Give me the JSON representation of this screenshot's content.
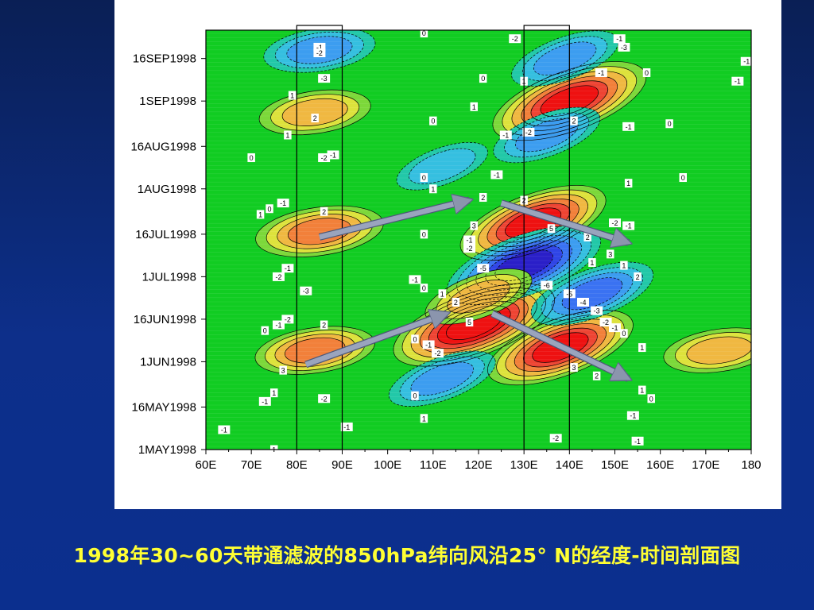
{
  "caption": "1998年30~60天带通滤波的850hPa纬向风沿25° N的经度-时间剖面图",
  "chart_data": {
    "type": "heatmap",
    "title": "",
    "xlabel": "",
    "ylabel": "",
    "x_tick_labels": [
      "60E",
      "70E",
      "80E",
      "90E",
      "100E",
      "110E",
      "120E",
      "130E",
      "140E",
      "150E",
      "160E",
      "170E",
      "180"
    ],
    "x_ticks": [
      60,
      70,
      80,
      90,
      100,
      110,
      120,
      130,
      140,
      150,
      160,
      170,
      180
    ],
    "xlim": [
      60,
      180
    ],
    "y_tick_labels": [
      "1MAY1998",
      "16MAY1998",
      "1JUN1998",
      "16JUN1998",
      "1JUL1998",
      "16JUL1998",
      "1AUG1998",
      "16AUG1998",
      "1SEP1998",
      "16SEP1998"
    ],
    "y_ticks": [
      "1998-05-01",
      "1998-05-16",
      "1998-06-01",
      "1998-06-16",
      "1998-07-01",
      "1998-07-16",
      "1998-08-01",
      "1998-08-16",
      "1998-09-01",
      "1998-09-16"
    ],
    "ylim": [
      "1998-05-01",
      "1998-09-26"
    ],
    "contour_levels": [
      -6,
      -5,
      -4,
      -3,
      -2,
      -1,
      0,
      1,
      2,
      3,
      4,
      5,
      6
    ],
    "color_scale": {
      "-6": "#2a1fc8",
      "-5": "#2f45e6",
      "-4": "#3a72f2",
      "-3": "#3c9df0",
      "-2": "#35bfe0",
      "-1": "#22c8a8",
      "0": "#11cc22",
      "1": "#7cd83a",
      "2": "#dde23c",
      "3": "#f0b841",
      "4": "#f2803a",
      "5": "#ee4433",
      "6": "#ee1111"
    },
    "anomalies": [
      {
        "lon": 119,
        "date": "1998-06-14",
        "value": 6.5,
        "sign": "positive"
      },
      {
        "lon": 138,
        "date": "1998-06-06",
        "value": 5.5,
        "sign": "positive"
      },
      {
        "lon": 132,
        "date": "1998-07-20",
        "value": 5.5,
        "sign": "positive"
      },
      {
        "lon": 140,
        "date": "1998-09-01",
        "value": 6,
        "sign": "positive"
      },
      {
        "lon": 130,
        "date": "1998-07-05",
        "value": -6,
        "sign": "negative"
      },
      {
        "lon": 85,
        "date": "1998-07-17",
        "value": 4,
        "sign": "positive"
      },
      {
        "lon": 84,
        "date": "1998-06-05",
        "value": 3.5,
        "sign": "positive"
      },
      {
        "lon": 84,
        "date": "1998-08-28",
        "value": 3,
        "sign": "positive"
      },
      {
        "lon": 85,
        "date": "1998-09-19",
        "value": -3,
        "sign": "negative"
      },
      {
        "lon": 135,
        "date": "1998-08-20",
        "value": -3,
        "sign": "negative"
      },
      {
        "lon": 120,
        "date": "1998-06-24",
        "value": 3,
        "sign": "positive"
      },
      {
        "lon": 173,
        "date": "1998-06-05",
        "value": 3,
        "sign": "positive"
      },
      {
        "lon": 112,
        "date": "1998-05-26",
        "value": -3,
        "sign": "negative"
      },
      {
        "lon": 139,
        "date": "1998-09-16",
        "value": -3,
        "sign": "negative"
      },
      {
        "lon": 112,
        "date": "1998-08-09",
        "value": -2,
        "sign": "negative"
      },
      {
        "lon": 145,
        "date": "1998-06-25",
        "value": -4,
        "sign": "negative"
      }
    ],
    "contour_labels": [
      {
        "lon": 85,
        "date": "1998-09-20",
        "text": "-1"
      },
      {
        "lon": 85,
        "date": "1998-09-18",
        "text": "-2"
      },
      {
        "lon": 86,
        "date": "1998-09-09",
        "text": "-3"
      },
      {
        "lon": 79,
        "date": "1998-09-03",
        "text": "1"
      },
      {
        "lon": 84,
        "date": "1998-08-26",
        "text": "2"
      },
      {
        "lon": 78,
        "date": "1998-08-20",
        "text": "1"
      },
      {
        "lon": 70,
        "date": "1998-08-12",
        "text": "0"
      },
      {
        "lon": 86,
        "date": "1998-08-12",
        "text": "-2"
      },
      {
        "lon": 88,
        "date": "1998-08-13",
        "text": "-1"
      },
      {
        "lon": 77,
        "date": "1998-07-27",
        "text": "-1"
      },
      {
        "lon": 74,
        "date": "1998-07-25",
        "text": "0"
      },
      {
        "lon": 72,
        "date": "1998-07-23",
        "text": "1"
      },
      {
        "lon": 86,
        "date": "1998-07-24",
        "text": "2"
      },
      {
        "lon": 78,
        "date": "1998-07-04",
        "text": "-1"
      },
      {
        "lon": 76,
        "date": "1998-07-01",
        "text": "-2"
      },
      {
        "lon": 82,
        "date": "1998-06-26",
        "text": "-3"
      },
      {
        "lon": 78,
        "date": "1998-06-16",
        "text": "-2"
      },
      {
        "lon": 76,
        "date": "1998-06-14",
        "text": "-1"
      },
      {
        "lon": 73,
        "date": "1998-06-12",
        "text": "0"
      },
      {
        "lon": 86,
        "date": "1998-06-14",
        "text": "2"
      },
      {
        "lon": 77,
        "date": "1998-05-29",
        "text": "3"
      },
      {
        "lon": 75,
        "date": "1998-05-21",
        "text": "1"
      },
      {
        "lon": 73,
        "date": "1998-05-18",
        "text": "-1"
      },
      {
        "lon": 86,
        "date": "1998-05-19",
        "text": "-2"
      },
      {
        "lon": 64,
        "date": "1998-05-08",
        "text": "-1"
      },
      {
        "lon": 75,
        "date": "1998-05-01",
        "text": "1"
      },
      {
        "lon": 91,
        "date": "1998-05-09",
        "text": "-1"
      },
      {
        "lon": 108,
        "date": "1998-09-25",
        "text": "0"
      },
      {
        "lon": 128,
        "date": "1998-09-23",
        "text": "-2"
      },
      {
        "lon": 151,
        "date": "1998-09-23",
        "text": "-1"
      },
      {
        "lon": 152,
        "date": "1998-09-20",
        "text": "-3"
      },
      {
        "lon": 121,
        "date": "1998-09-09",
        "text": "0"
      },
      {
        "lon": 130,
        "date": "1998-09-08",
        "text": "1"
      },
      {
        "lon": 147,
        "date": "1998-09-11",
        "text": "-1"
      },
      {
        "lon": 157,
        "date": "1998-09-11",
        "text": "0"
      },
      {
        "lon": 177,
        "date": "1998-09-08",
        "text": "-1"
      },
      {
        "lon": 119,
        "date": "1998-08-30",
        "text": "1"
      },
      {
        "lon": 110,
        "date": "1998-08-25",
        "text": "0"
      },
      {
        "lon": 141,
        "date": "1998-08-25",
        "text": "2"
      },
      {
        "lon": 126,
        "date": "1998-08-20",
        "text": "-1"
      },
      {
        "lon": 131,
        "date": "1998-08-21",
        "text": "-2"
      },
      {
        "lon": 153,
        "date": "1998-08-23",
        "text": "-1"
      },
      {
        "lon": 162,
        "date": "1998-08-24",
        "text": "0"
      },
      {
        "lon": 124,
        "date": "1998-08-06",
        "text": "-1"
      },
      {
        "lon": 108,
        "date": "1998-08-05",
        "text": "0"
      },
      {
        "lon": 110,
        "date": "1998-08-01",
        "text": "1"
      },
      {
        "lon": 121,
        "date": "1998-07-29",
        "text": "2"
      },
      {
        "lon": 153,
        "date": "1998-08-03",
        "text": "1"
      },
      {
        "lon": 165,
        "date": "1998-08-05",
        "text": "0"
      },
      {
        "lon": 130,
        "date": "1998-07-28",
        "text": "2"
      },
      {
        "lon": 119,
        "date": "1998-07-19",
        "text": "3"
      },
      {
        "lon": 108,
        "date": "1998-07-16",
        "text": "0"
      },
      {
        "lon": 150,
        "date": "1998-07-20",
        "text": "-2"
      },
      {
        "lon": 153,
        "date": "1998-07-19",
        "text": "-1"
      },
      {
        "lon": 118,
        "date": "1998-07-14",
        "text": "-1"
      },
      {
        "lon": 118,
        "date": "1998-07-11",
        "text": "-2"
      },
      {
        "lon": 136,
        "date": "1998-07-18",
        "text": "5"
      },
      {
        "lon": 144,
        "date": "1998-07-15",
        "text": "2"
      },
      {
        "lon": 145,
        "date": "1998-07-06",
        "text": "1"
      },
      {
        "lon": 149,
        "date": "1998-07-09",
        "text": "3"
      },
      {
        "lon": 152,
        "date": "1998-07-05",
        "text": "1"
      },
      {
        "lon": 155,
        "date": "1998-07-01",
        "text": "2"
      },
      {
        "lon": 121,
        "date": "1998-07-04",
        "text": "-5"
      },
      {
        "lon": 135,
        "date": "1998-06-28",
        "text": "-6"
      },
      {
        "lon": 140,
        "date": "1998-06-25",
        "text": "-5"
      },
      {
        "lon": 143,
        "date": "1998-06-22",
        "text": "-4"
      },
      {
        "lon": 146,
        "date": "1998-06-19",
        "text": "-3"
      },
      {
        "lon": 148,
        "date": "1998-06-15",
        "text": "-2"
      },
      {
        "lon": 150,
        "date": "1998-06-13",
        "text": "-1"
      },
      {
        "lon": 152,
        "date": "1998-06-11",
        "text": "0"
      },
      {
        "lon": 156,
        "date": "1998-06-06",
        "text": "1"
      },
      {
        "lon": 106,
        "date": "1998-06-30",
        "text": "-1"
      },
      {
        "lon": 108,
        "date": "1998-06-27",
        "text": "0"
      },
      {
        "lon": 112,
        "date": "1998-06-25",
        "text": "1"
      },
      {
        "lon": 115,
        "date": "1998-06-22",
        "text": "2"
      },
      {
        "lon": 118,
        "date": "1998-06-15",
        "text": "5"
      },
      {
        "lon": 106,
        "date": "1998-06-09",
        "text": "0"
      },
      {
        "lon": 109,
        "date": "1998-06-07",
        "text": "-1"
      },
      {
        "lon": 111,
        "date": "1998-06-04",
        "text": "-2"
      },
      {
        "lon": 141,
        "date": "1998-05-30",
        "text": "3"
      },
      {
        "lon": 146,
        "date": "1998-05-27",
        "text": "2"
      },
      {
        "lon": 156,
        "date": "1998-05-22",
        "text": "1"
      },
      {
        "lon": 158,
        "date": "1998-05-19",
        "text": "0"
      },
      {
        "lon": 106,
        "date": "1998-05-20",
        "text": "0"
      },
      {
        "lon": 108,
        "date": "1998-05-12",
        "text": "1"
      },
      {
        "lon": 154,
        "date": "1998-05-13",
        "text": "-1"
      },
      {
        "lon": 137,
        "date": "1998-05-05",
        "text": "-2"
      },
      {
        "lon": 155,
        "date": "1998-05-04",
        "text": "-1"
      },
      {
        "lon": 182,
        "date": "1998-09-15",
        "text": "-1"
      }
    ],
    "boxes": [
      {
        "lon_range": [
          80,
          90
        ],
        "date_range": [
          "1998-05-01",
          "1998-09-26"
        ]
      },
      {
        "lon_range": [
          130,
          140
        ],
        "date_range": [
          "1998-05-01",
          "1998-09-26"
        ]
      }
    ],
    "arrows": [
      {
        "from": {
          "lon": 82,
          "date": "1998-05-31"
        },
        "to": {
          "lon": 113,
          "date": "1998-06-18"
        }
      },
      {
        "from": {
          "lon": 85,
          "date": "1998-07-15"
        },
        "to": {
          "lon": 118,
          "date": "1998-07-28"
        }
      },
      {
        "from": {
          "lon": 123,
          "date": "1998-06-18"
        },
        "to": {
          "lon": 153,
          "date": "1998-05-26"
        }
      },
      {
        "from": {
          "lon": 125,
          "date": "1998-07-27"
        },
        "to": {
          "lon": 153,
          "date": "1998-07-13"
        }
      }
    ]
  }
}
